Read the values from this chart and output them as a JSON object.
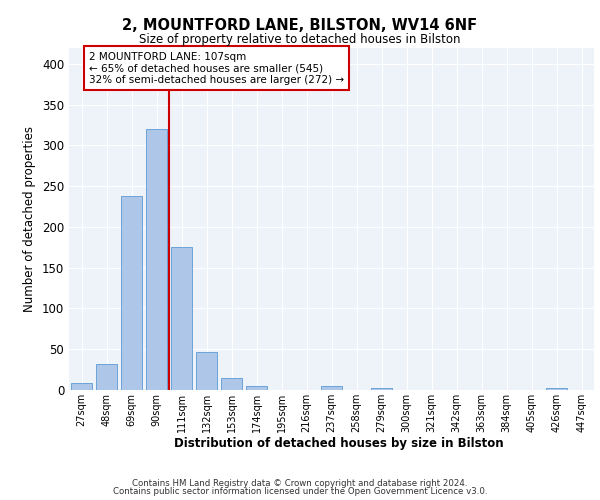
{
  "title1": "2, MOUNTFORD LANE, BILSTON, WV14 6NF",
  "title2": "Size of property relative to detached houses in Bilston",
  "xlabel": "Distribution of detached houses by size in Bilston",
  "ylabel": "Number of detached properties",
  "bar_labels": [
    "27sqm",
    "48sqm",
    "69sqm",
    "90sqm",
    "111sqm",
    "132sqm",
    "153sqm",
    "174sqm",
    "195sqm",
    "216sqm",
    "237sqm",
    "258sqm",
    "279sqm",
    "300sqm",
    "321sqm",
    "342sqm",
    "363sqm",
    "384sqm",
    "405sqm",
    "426sqm",
    "447sqm"
  ],
  "bar_values": [
    8,
    32,
    238,
    320,
    175,
    46,
    15,
    5,
    0,
    0,
    5,
    0,
    3,
    0,
    0,
    0,
    0,
    0,
    0,
    3,
    0
  ],
  "bar_color": "#aec6e8",
  "bar_edge_color": "#5b9bd5",
  "bg_color": "#eef2f9",
  "grid_color": "#ffffff",
  "annotation_line1": "2 MOUNTFORD LANE: 107sqm",
  "annotation_line2": "← 65% of detached houses are smaller (545)",
  "annotation_line3": "32% of semi-detached houses are larger (272) →",
  "annotation_box_color": "#ffffff",
  "annotation_box_edge": "#cc0000",
  "vline_x_index": 4,
  "vline_color": "#cc0000",
  "footnote1": "Contains HM Land Registry data © Crown copyright and database right 2024.",
  "footnote2": "Contains public sector information licensed under the Open Government Licence v3.0.",
  "ylim": [
    0,
    420
  ],
  "yticks": [
    0,
    50,
    100,
    150,
    200,
    250,
    300,
    350,
    400
  ]
}
